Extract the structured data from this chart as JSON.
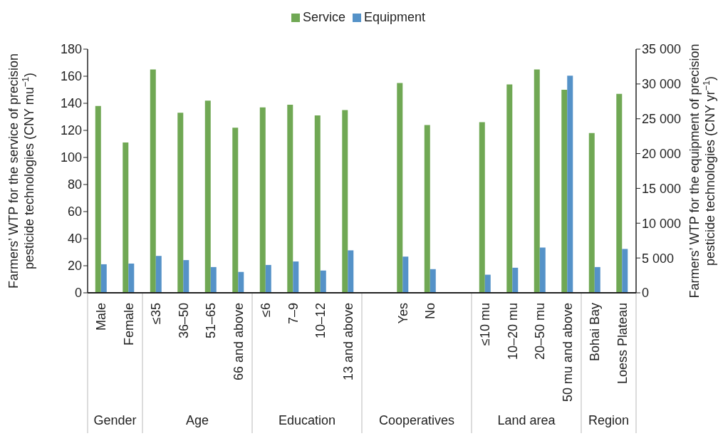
{
  "chart_data": {
    "type": "bar",
    "ylabel": "Farmers’ WTP for the service of precision pesticide technologies (CNY mu$^{−1}$)",
    "y2label": "Farmers’ WTP for the equipment of precision pesticide technologies (CNY yr$^{−1}$)",
    "categories": [
      "Male",
      "Female",
      "≤35",
      "36–50",
      "51–65",
      "66 and above",
      "≤6",
      "7–9",
      "10–12",
      "13 and above",
      null,
      "Yes",
      "No",
      null,
      "≤10 mu",
      "10–20 mu",
      "20–50 mu",
      "50 mu and above",
      "Bohai Bay",
      "Loess Plateau"
    ],
    "series": [
      {
        "name": "Service",
        "color": "#70a854",
        "values": [
          138,
          111,
          165,
          133,
          142,
          122,
          137,
          139,
          131,
          135,
          null,
          155,
          124,
          null,
          126,
          154,
          165,
          150,
          118,
          147
        ]
      },
      {
        "name": "Equipment",
        "color": "#5592c8",
        "axis": "y2",
        "values": [
          4100,
          4200,
          5300,
          4700,
          3700,
          3000,
          4000,
          4500,
          3200,
          6100,
          null,
          5200,
          3400,
          null,
          2600,
          3600,
          6500,
          31200,
          3700,
          6300
        ]
      }
    ],
    "ylim": [
      0,
      180
    ],
    "yticks": [
      0,
      20,
      40,
      60,
      80,
      100,
      120,
      140,
      160,
      180
    ],
    "y2lim": [
      0,
      35000
    ],
    "y2ticks": [
      0,
      {
        "value": 5000,
        "label": "5 000"
      },
      {
        "value": 10000,
        "label": "10 000"
      },
      {
        "value": 15000,
        "label": "15 000"
      },
      {
        "value": 20000,
        "label": "20 000"
      },
      {
        "value": 25000,
        "label": "25 000"
      },
      {
        "value": 30000,
        "label": "30 000"
      },
      {
        "value": 35000,
        "label": "35 000"
      }
    ],
    "annotations": [
      "Gender",
      "Age",
      "Education",
      "Cooperatives",
      "Land area",
      "Region"
    ],
    "legend": "top",
    "grid": false
  }
}
